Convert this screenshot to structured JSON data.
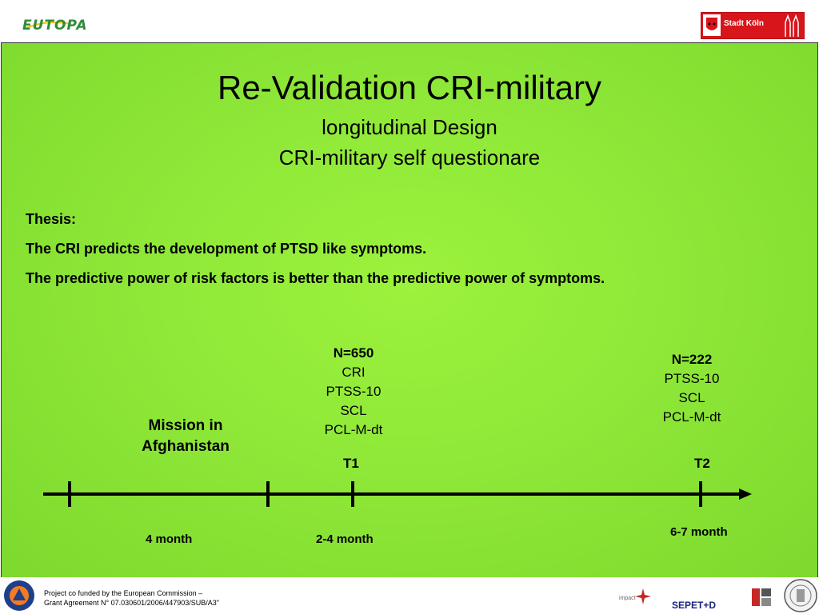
{
  "header": {
    "left_logo_text": "EUTOPA",
    "right_logo_text": "Stadt Köln"
  },
  "slide": {
    "title": "Re-Validation CRI-military",
    "subtitle_line1": "longitudinal Design",
    "subtitle_line2": "CRI-military self questionare",
    "thesis": {
      "heading": "Thesis:",
      "line1": "The CRI predicts the development of PTSD like symptoms.",
      "line2": "The predictive power of risk factors is better than the predictive power of symptoms."
    },
    "t1_measures": {
      "n": "N=650",
      "items": [
        "CRI",
        "PTSS-10",
        "SCL",
        "PCL-M-dt"
      ]
    },
    "t2_measures": {
      "n": "N=222",
      "items": [
        "PTSS-10",
        "SCL",
        "PCL-M-dt"
      ]
    },
    "mission_line1": "Mission in",
    "mission_line2": "Afghanistan",
    "t1_label": "T1",
    "t2_label": "T2",
    "duration1": "4 month",
    "duration2": "2-4  month",
    "duration3": "6-7  month"
  },
  "footer": {
    "funded_line1": "Project co funded by the European Commission –",
    "funded_line2": "Grant Agreement N° 07.030601/2006/447903/SUB/A3\"",
    "impact_text": "impact",
    "sepet_text": "SEPET+D"
  },
  "colors": {
    "slide_background": "#8fe838",
    "eutopa_green": "#2e8b3a",
    "koln_red": "#d7151b",
    "sepet_blue": "#1a237e"
  }
}
